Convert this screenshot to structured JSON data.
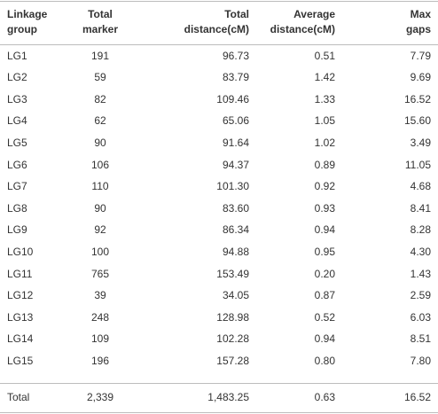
{
  "table": {
    "header": [
      "Linkage group",
      "Total marker",
      "Total distance(cM)",
      "Average distance(cM)",
      "Max gaps"
    ],
    "rows": [
      [
        "LG1",
        "191",
        "96.73",
        "0.51",
        "7.79"
      ],
      [
        "LG2",
        "59",
        "83.79",
        "1.42",
        "9.69"
      ],
      [
        "LG3",
        "82",
        "109.46",
        "1.33",
        "16.52"
      ],
      [
        "LG4",
        "62",
        "65.06",
        "1.05",
        "15.60"
      ],
      [
        "LG5",
        "90",
        "91.64",
        "1.02",
        "3.49"
      ],
      [
        "LG6",
        "106",
        "94.37",
        "0.89",
        "11.05"
      ],
      [
        "LG7",
        "110",
        "101.30",
        "0.92",
        "4.68"
      ],
      [
        "LG8",
        "90",
        "83.60",
        "0.93",
        "8.41"
      ],
      [
        "LG9",
        "92",
        "86.34",
        "0.94",
        "8.28"
      ],
      [
        "LG10",
        "100",
        "94.88",
        "0.95",
        "4.30"
      ],
      [
        "LG11",
        "765",
        "153.49",
        "0.20",
        "1.43"
      ],
      [
        "LG12",
        "39",
        "34.05",
        "0.87",
        "2.59"
      ],
      [
        "LG13",
        "248",
        "128.98",
        "0.52",
        "6.03"
      ],
      [
        "LG14",
        "109",
        "102.28",
        "0.94",
        "8.51"
      ],
      [
        "LG15",
        "196",
        "157.28",
        "0.80",
        "7.80"
      ]
    ],
    "total": [
      "Total",
      "2,339",
      "1,483.25",
      "0.63",
      "16.52"
    ]
  }
}
